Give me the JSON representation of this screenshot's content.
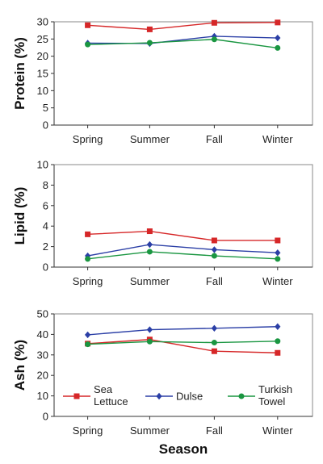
{
  "chart_data": [
    {
      "type": "line",
      "categories": [
        "Spring",
        "Summer",
        "Fall",
        "Winter"
      ],
      "ylabel": "Protein (%)",
      "ylim": [
        0,
        30
      ],
      "yticks": [
        0,
        5,
        10,
        15,
        20,
        25,
        30
      ],
      "series": [
        {
          "name": "Sea Lettuce",
          "color": "#d62728",
          "marker": "square",
          "values": [
            29.0,
            27.8,
            29.7,
            29.8
          ]
        },
        {
          "name": "Dulse",
          "color": "#2b3fa6",
          "marker": "diamond",
          "values": [
            23.8,
            23.7,
            25.8,
            25.3
          ]
        },
        {
          "name": "Turkish Towel",
          "color": "#1a9641",
          "marker": "circle",
          "values": [
            23.4,
            23.9,
            24.9,
            22.4
          ]
        }
      ]
    },
    {
      "type": "line",
      "categories": [
        "Spring",
        "Summer",
        "Fall",
        "Winter"
      ],
      "ylabel": "Lipid (%)",
      "ylim": [
        0,
        10
      ],
      "yticks": [
        0,
        2,
        4,
        6,
        8,
        10
      ],
      "series": [
        {
          "name": "Sea Lettuce",
          "color": "#d62728",
          "marker": "square",
          "values": [
            3.2,
            3.5,
            2.6,
            2.6
          ]
        },
        {
          "name": "Dulse",
          "color": "#2b3fa6",
          "marker": "diamond",
          "values": [
            1.1,
            2.2,
            1.7,
            1.4
          ]
        },
        {
          "name": "Turkish Towel",
          "color": "#1a9641",
          "marker": "circle",
          "values": [
            0.8,
            1.5,
            1.1,
            0.8
          ]
        }
      ]
    },
    {
      "type": "line",
      "categories": [
        "Spring",
        "Summer",
        "Fall",
        "Winter"
      ],
      "ylabel": "Ash (%)",
      "xlabel": "Season",
      "ylim": [
        0,
        50
      ],
      "yticks": [
        0,
        10,
        20,
        30,
        40,
        50
      ],
      "series": [
        {
          "name": "Sea Lettuce",
          "color": "#d62728",
          "marker": "square",
          "values": [
            35.5,
            37.5,
            31.8,
            31.0
          ]
        },
        {
          "name": "Dulse",
          "color": "#2b3fa6",
          "marker": "diamond",
          "values": [
            39.8,
            42.3,
            43.0,
            43.8
          ]
        },
        {
          "name": "Turkish Towel",
          "color": "#1a9641",
          "marker": "circle",
          "values": [
            35.2,
            36.5,
            36.0,
            36.7
          ]
        }
      ],
      "legend": {
        "position": "inside-bottom",
        "entries": [
          {
            "label_line1": "Sea",
            "label_line2": "Lettuce",
            "color": "#d62728",
            "marker": "square"
          },
          {
            "label_line1": "Dulse",
            "label_line2": "",
            "color": "#2b3fa6",
            "marker": "diamond"
          },
          {
            "label_line1": "Turkish",
            "label_line2": "Towel",
            "color": "#1a9641",
            "marker": "circle"
          }
        ]
      }
    }
  ]
}
